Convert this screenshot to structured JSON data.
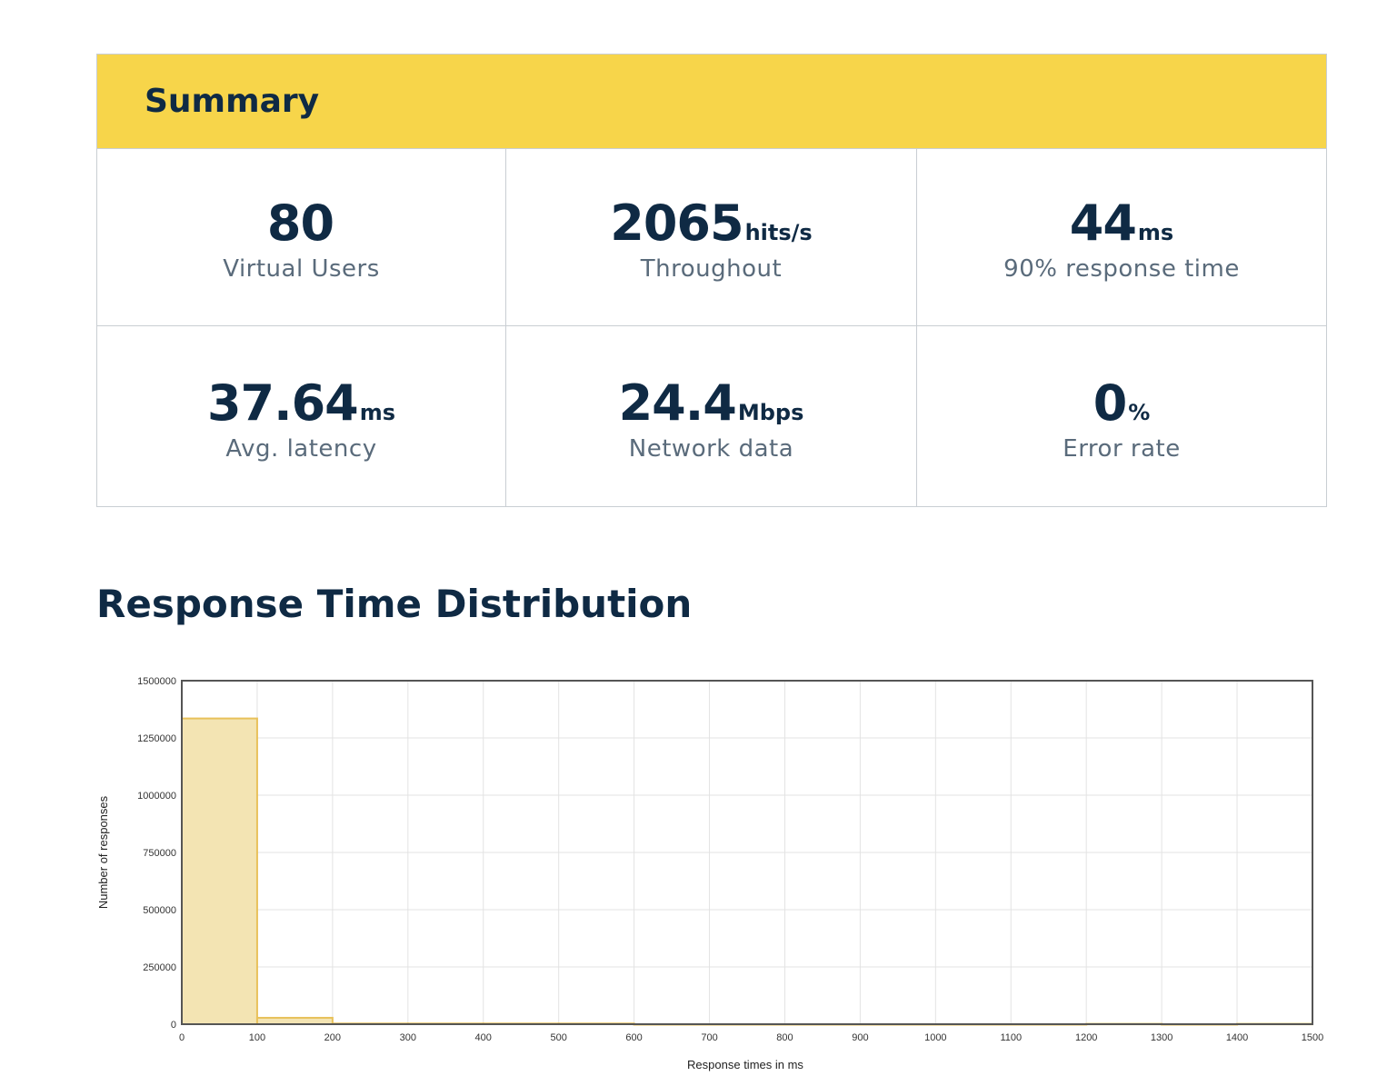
{
  "summary": {
    "title": "Summary",
    "stats": [
      {
        "value": "80",
        "unit": "",
        "label": "Virtual Users"
      },
      {
        "value": "2065",
        "unit": "hits/s",
        "label": "Throughout"
      },
      {
        "value": "44",
        "unit": "ms",
        "label": "90% response time"
      },
      {
        "value": "37.64",
        "unit": "ms",
        "label": "Avg. latency"
      },
      {
        "value": "24.4",
        "unit": "Mbps",
        "label": "Network data"
      },
      {
        "value": "0",
        "unit": "%",
        "label": "Error rate"
      }
    ]
  },
  "distribution": {
    "title": "Response Time Distribution"
  },
  "colors": {
    "header_bg": "#f7d54a",
    "text_dark": "#0f2a44",
    "text_muted": "#5a6b7b",
    "bar_fill": "#f3e4b3",
    "bar_stroke": "#e8c15a"
  },
  "chart_data": {
    "type": "bar",
    "x_bins": [
      [
        0,
        100
      ],
      [
        100,
        200
      ],
      [
        200,
        300
      ],
      [
        300,
        400
      ],
      [
        400,
        500
      ],
      [
        500,
        600
      ],
      [
        600,
        700
      ],
      [
        700,
        800
      ],
      [
        800,
        900
      ],
      [
        900,
        1000
      ],
      [
        1000,
        1100
      ],
      [
        1100,
        1200
      ],
      [
        1200,
        1300
      ],
      [
        1300,
        1400
      ],
      [
        1400,
        1500
      ]
    ],
    "values": [
      1335000,
      28000,
      3000,
      3000,
      3000,
      3000,
      0,
      0,
      0,
      0,
      0,
      0,
      1500,
      0,
      1500
    ],
    "xlabel": "Response times in ms",
    "ylabel": "Number of responses",
    "xlim": [
      0,
      1500
    ],
    "ylim": [
      0,
      1500000
    ],
    "x_ticks": [
      0,
      100,
      200,
      300,
      400,
      500,
      600,
      700,
      800,
      900,
      1000,
      1100,
      1200,
      1300,
      1400,
      1500
    ],
    "y_ticks": [
      0,
      250000,
      500000,
      750000,
      1000000,
      1250000,
      1500000
    ],
    "grid": true
  }
}
